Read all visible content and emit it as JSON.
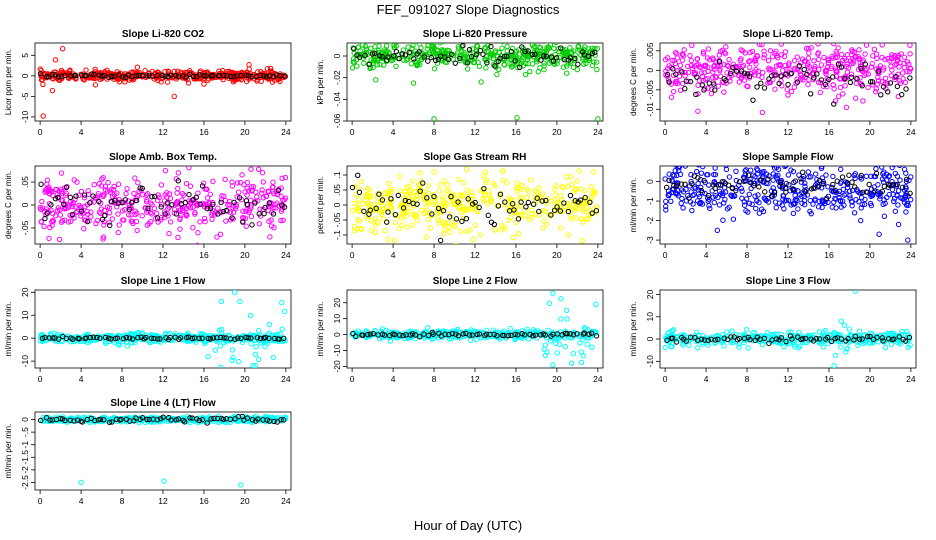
{
  "figure": {
    "title": "FEF_091027  Slope Diagnostics",
    "xlabel": "Hour of Day (UTC)"
  },
  "chart_data": [
    {
      "type": "scatter",
      "title": "Slope Li-820 CO2",
      "ylabel": "Licor ppm per min.",
      "color": "#ff0000",
      "xlim": [
        -0.5,
        24.5
      ],
      "ylim": [
        -11,
        8
      ],
      "xticks": [
        0,
        4,
        8,
        12,
        16,
        20,
        24
      ],
      "yticks": [
        -10,
        -5,
        0,
        5
      ],
      "noise": 0.6,
      "outliers": [
        [
          2.2,
          6.6
        ],
        [
          1.2,
          -3.6
        ],
        [
          0.3,
          -9.8
        ],
        [
          13.1,
          -5.0
        ],
        [
          5.4,
          -2.2
        ],
        [
          20.4,
          2.7
        ],
        [
          1.5,
          3.9
        ],
        [
          9.5,
          2.1
        ],
        [
          16.0,
          -2.0
        ],
        [
          22.5,
          1.8
        ]
      ],
      "secondary": {
        "color": "#000000",
        "values": 0.0,
        "noise": 0.2
      }
    },
    {
      "type": "scatter",
      "title": "Slope Li-820 Pressure",
      "ylabel": "kPa per min.",
      "color": "#00cc00",
      "xlim": [
        -0.5,
        24.5
      ],
      "ylim": [
        -0.06,
        0.012
      ],
      "xticks": [
        0,
        4,
        8,
        12,
        16,
        20,
        24
      ],
      "yticks": [
        -0.06,
        -0.04,
        -0.02,
        0
      ],
      "noise": 0.006,
      "outliers": [
        [
          8.0,
          -0.058
        ],
        [
          16.1,
          -0.057
        ],
        [
          24.0,
          -0.058
        ],
        [
          2.3,
          -0.022
        ],
        [
          12.6,
          -0.024
        ],
        [
          6.0,
          -0.025
        ],
        [
          0.6,
          0.008
        ],
        [
          19.7,
          0.007
        ]
      ],
      "secondary": {
        "color": "#000000",
        "values": 0.0,
        "noise": 0.004
      }
    },
    {
      "type": "scatter",
      "title": "Slope Li-820 Temp.",
      "ylabel": "degrees C per min.",
      "color": "#ff00ff",
      "xlim": [
        -0.5,
        24.5
      ],
      "ylim": [
        -0.013,
        0.007
      ],
      "xticks": [
        0,
        4,
        8,
        12,
        16,
        20,
        24
      ],
      "yticks": [
        -0.01,
        -0.005,
        0,
        0.005
      ],
      "noise": 0.003,
      "outliers": [
        [
          21.2,
          0.0065
        ],
        [
          3.2,
          -0.0105
        ],
        [
          9.5,
          -0.0108
        ],
        [
          14.0,
          0.0055
        ],
        [
          17.7,
          -0.0095
        ]
      ],
      "secondary": {
        "color": "#000000",
        "values": -0.002,
        "noise": 0.002
      }
    },
    {
      "type": "scatter",
      "title": "Slope Amb. Box Temp.",
      "ylabel": "degrees C per min.",
      "color": "#ff00ff",
      "xlim": [
        -0.5,
        24.5
      ],
      "ylim": [
        -0.085,
        0.085
      ],
      "xticks": [
        0,
        4,
        8,
        12,
        16,
        20,
        24
      ],
      "yticks": [
        -0.05,
        0,
        0.05
      ],
      "noise": 0.03,
      "outliers": [
        [
          1.9,
          -0.075
        ],
        [
          20.6,
          0.078
        ],
        [
          6.2,
          -0.07
        ],
        [
          13.5,
          0.07
        ]
      ],
      "secondary": {
        "color": "#000000",
        "values": 0.0,
        "noise": 0.025
      }
    },
    {
      "type": "scatter",
      "title": "Slope Gas Stream RH",
      "ylabel": "percent per min.",
      "color": "#ffff00",
      "xlim": [
        -0.5,
        24.5
      ],
      "ylim": [
        -0.13,
        0.13
      ],
      "xticks": [
        0,
        4,
        8,
        12,
        16,
        20,
        24
      ],
      "yticks": [
        -0.1,
        -0.05,
        0,
        0.05,
        0.1
      ],
      "noise": 0.045,
      "outliers": [
        [
          8.0,
          0.11
        ],
        [
          23.6,
          0.11
        ],
        [
          3.5,
          -0.115
        ],
        [
          21.1,
          -0.1
        ],
        [
          12.5,
          -0.1
        ]
      ],
      "secondary": {
        "color": "#000000",
        "values": 0.0,
        "noise": 0.035
      }
    },
    {
      "type": "scatter",
      "title": "Slope Sample Flow",
      "ylabel": "ml/min per min.",
      "color": "#0000ff",
      "xlim": [
        -0.5,
        24.5
      ],
      "ylim": [
        -3.2,
        0.8
      ],
      "xticks": [
        0,
        4,
        8,
        12,
        16,
        20,
        24
      ],
      "yticks": [
        -3,
        -2,
        -1,
        0
      ],
      "noise": 0.35,
      "bands": [
        0.3,
        -0.5,
        -1.0
      ],
      "outliers": [
        [
          23.7,
          -3.0
        ],
        [
          5.1,
          -2.5
        ],
        [
          20.9,
          -2.7
        ],
        [
          22.8,
          -2.2
        ],
        [
          19.1,
          -2.0
        ],
        [
          18.5,
          -1.6
        ]
      ],
      "secondary": {
        "color": "#000000",
        "values": -0.2,
        "noise": 0.3
      }
    },
    {
      "type": "scatter",
      "title": "Slope Line 1 Flow",
      "ylabel": "ml/min per min.",
      "color": "#00ffff",
      "xlim": [
        -0.5,
        24.5
      ],
      "ylim": [
        -13,
        21
      ],
      "xticks": [
        0,
        4,
        8,
        12,
        16,
        20,
        24
      ],
      "yticks": [
        -10,
        0,
        10,
        20
      ],
      "noise": 1.0,
      "scatterRegion": [
        16,
        24,
        7
      ],
      "outliers": [
        [
          19.0,
          20.0
        ],
        [
          23.6,
          15.5
        ],
        [
          17.7,
          16.0
        ],
        [
          21.0,
          -12.0
        ],
        [
          16.4,
          -8.0
        ]
      ],
      "secondary": {
        "color": "#000000",
        "values": 0.0,
        "noise": 0.3
      }
    },
    {
      "type": "scatter",
      "title": "Slope Line 2 Flow",
      "ylabel": "ml/min per min.",
      "color": "#00ffff",
      "xlim": [
        -0.5,
        24.5
      ],
      "ylim": [
        -21,
        28
      ],
      "xticks": [
        0,
        4,
        8,
        12,
        16,
        20,
        24
      ],
      "yticks": [
        -20,
        -10,
        0,
        10,
        20
      ],
      "noise": 1.3,
      "scatterRegion": [
        18.5,
        24,
        9
      ],
      "outliers": [
        [
          19.6,
          26.0
        ],
        [
          20.4,
          22.5
        ],
        [
          23.8,
          19.0
        ],
        [
          19.6,
          -19.0
        ],
        [
          22.4,
          -17.5
        ],
        [
          18.9,
          -13.0
        ]
      ],
      "secondary": {
        "color": "#000000",
        "values": 0.0,
        "noise": 0.5
      }
    },
    {
      "type": "scatter",
      "title": "Slope Line 3 Flow",
      "ylabel": "ml/min per min.",
      "color": "#00ffff",
      "xlim": [
        -0.5,
        24.5
      ],
      "ylim": [
        -13,
        22
      ],
      "xticks": [
        0,
        4,
        8,
        12,
        16,
        20,
        24
      ],
      "yticks": [
        -10,
        0,
        10,
        20
      ],
      "noise": 1.5,
      "scatterRegion": [
        15.5,
        18,
        4
      ],
      "outliers": [
        [
          18.6,
          21.5
        ],
        [
          16.5,
          -12.0
        ],
        [
          17.2,
          8.0
        ]
      ],
      "secondary": {
        "color": "#000000",
        "values": 0.0,
        "noise": 0.7
      }
    },
    {
      "type": "scatter",
      "title": "Slope Line 4 (LT) Flow",
      "ylabel": "ml/min per min.",
      "color": "#00ffff",
      "xlim": [
        -0.5,
        24.5
      ],
      "ylim": [
        -2.8,
        0.3
      ],
      "xticks": [
        0,
        4,
        8,
        12,
        16,
        20,
        24
      ],
      "yticks": [
        -2.5,
        -2,
        -1.5,
        -1,
        -0.5,
        0
      ],
      "noise": 0.05,
      "outliers": [
        [
          4.0,
          -2.5
        ],
        [
          12.1,
          -2.45
        ],
        [
          19.6,
          -2.6
        ]
      ],
      "secondary": {
        "color": "#000000",
        "values": 0.0,
        "noise": 0.05
      }
    }
  ]
}
